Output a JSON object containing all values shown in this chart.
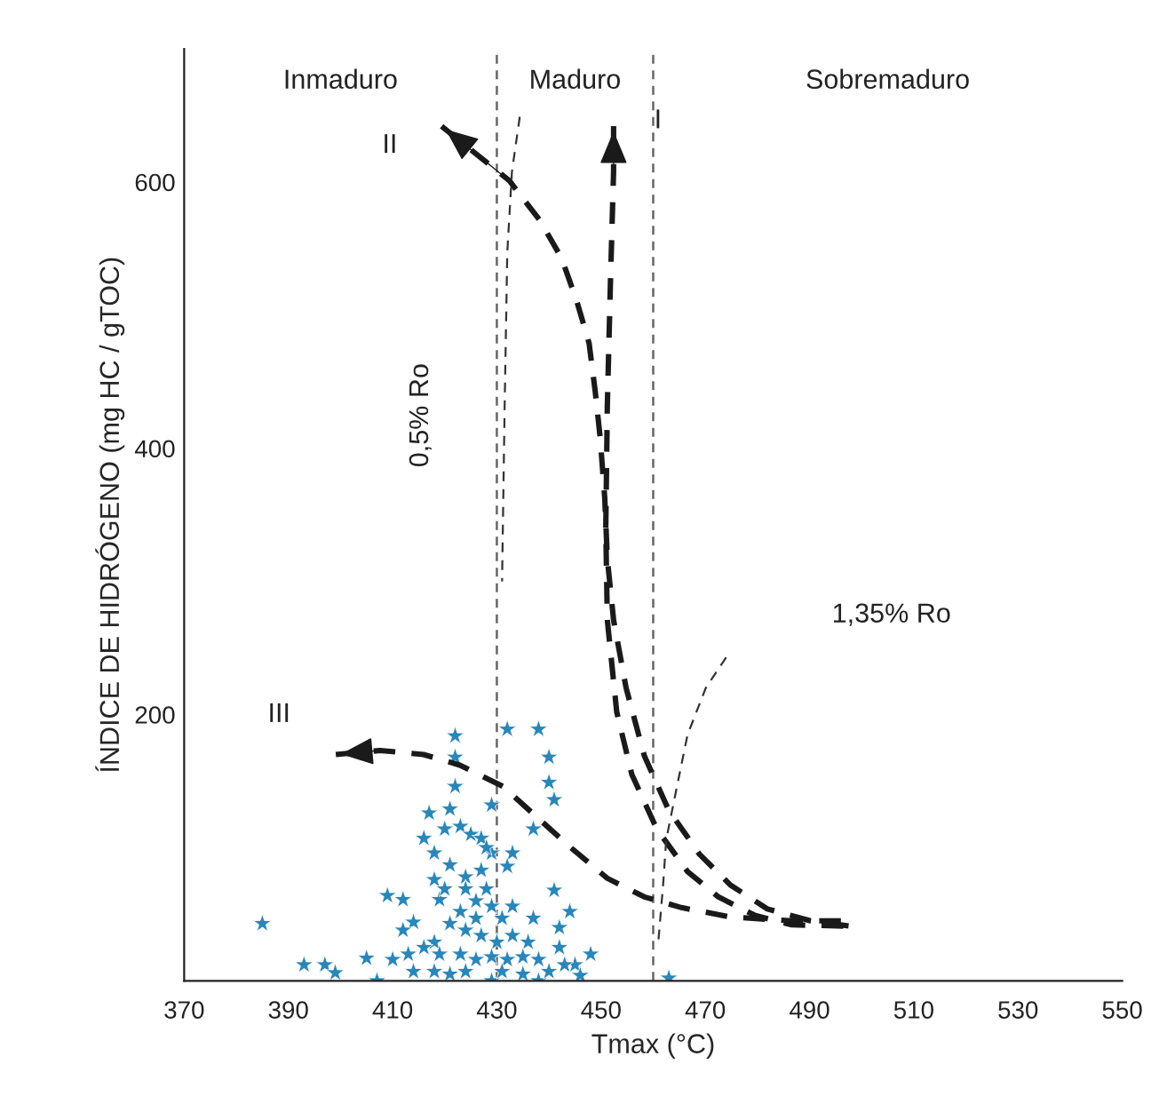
{
  "chart_data": {
    "type": "scatter",
    "xlabel": "Tmax (°C)",
    "ylabel": "ÍNDICE DE HIDRÓGENO (mg HC / gTOC)",
    "xlim": [
      370,
      550
    ],
    "ylim": [
      0,
      700
    ],
    "xticks": [
      370,
      390,
      410,
      430,
      450,
      470,
      490,
      510,
      530,
      550
    ],
    "yticks": [
      200,
      400,
      600
    ],
    "grid": false,
    "legend": false,
    "series": [
      {
        "marker": "star",
        "color": "#2a86b8",
        "x": [
          385,
          393,
          397,
          399,
          405,
          407,
          409,
          412,
          414,
          412,
          410,
          422,
          422,
          422,
          421,
          417,
          416,
          418,
          418,
          419,
          420,
          423,
          425,
          427,
          429,
          429,
          432,
          438,
          440,
          440,
          441,
          437,
          433,
          432,
          441,
          444,
          442,
          437,
          448,
          445,
          446,
          442,
          463,
          421,
          424,
          427,
          428,
          426,
          423,
          429,
          431,
          433,
          421,
          424,
          427,
          430,
          433,
          436,
          418,
          416,
          419,
          423,
          426,
          429,
          432,
          435,
          438,
          413,
          414,
          418,
          421,
          424,
          429,
          431,
          435,
          438,
          440,
          443,
          426,
          428,
          424,
          420
        ],
        "values": [
          43,
          12,
          12,
          6,
          17,
          0,
          64,
          61,
          44,
          38,
          16,
          184,
          168,
          146,
          129,
          126,
          107,
          96,
          76,
          61,
          114,
          116,
          110,
          107,
          96,
          132,
          189,
          189,
          168,
          149,
          136,
          114,
          96,
          86,
          68,
          52,
          40,
          47,
          20,
          12,
          4,
          25,
          2,
          87,
          78,
          83,
          69,
          60,
          52,
          56,
          47,
          56,
          43,
          38,
          34,
          29,
          34,
          29,
          29,
          25,
          20,
          20,
          16,
          18,
          16,
          18,
          16,
          20,
          7,
          7,
          5,
          7,
          0,
          7,
          5,
          0,
          7,
          12,
          47,
          100,
          69,
          69
        ]
      },
      {
        "type": "line",
        "marker": "none",
        "color": "#1a1a1a",
        "line_style": "dashed",
        "x": [
          419.4,
          432.4,
          438.3,
          442.4,
          445.3,
          447.7,
          448.9,
          449.8,
          450.7,
          451.2,
          452.4,
          454.8,
          458.3,
          463.0,
          468.9,
          474.8,
          481.9,
          490.2,
          497.9
        ],
        "values": [
          642,
          601,
          571,
          543,
          511,
          479,
          442,
          409,
          363,
          317,
          271,
          220,
          169,
          128,
          95,
          72,
          54,
          45,
          41
        ]
      },
      {
        "type": "line",
        "marker": "none",
        "color": "#1a1a1a",
        "line_style": "dashed",
        "x": [
          452.4,
          452.4,
          451.8,
          451.2,
          450.9,
          451.2,
          453.0,
          455.9,
          460.7,
          466.6,
          472.5,
          479.6,
          486.6,
          497.9
        ],
        "values": [
          642,
          608,
          525,
          432,
          340,
          271,
          202,
          155,
          114,
          82,
          63,
          49,
          42,
          41
        ]
      },
      {
        "type": "line",
        "marker": "none",
        "color": "#1a1a1a",
        "line_style": "dashed",
        "x": [
          399.1,
          407.6,
          415.9,
          422.9,
          431.2,
          437.1,
          444.2,
          451.2,
          458.3,
          465.4,
          474.8,
          486.6,
          497.9
        ],
        "values": [
          170,
          173,
          170,
          162,
          146,
          125,
          100,
          77,
          63,
          55,
          48,
          45,
          45
        ]
      },
      {
        "type": "line",
        "marker": "none",
        "color": "#333333",
        "line_style": "dotted",
        "x": [
          434.4,
          432.9,
          432.0,
          431.5,
          431.0
        ],
        "values": [
          649,
          608,
          547,
          432,
          300
        ]
      },
      {
        "type": "line",
        "marker": "none",
        "color": "#333333",
        "line_style": "dotted",
        "x": [
          474.0,
          470.1,
          466.6,
          464.2,
          462.5,
          461.9,
          461.0
        ],
        "values": [
          243,
          220,
          185,
          139,
          106,
          72,
          30
        ]
      }
    ],
    "ref_lines": [
      {
        "axis": "x",
        "value": 430,
        "color": "#666666",
        "line_style": "dashed"
      },
      {
        "axis": "x",
        "value": 460,
        "color": "#666666",
        "line_style": "dashed"
      }
    ],
    "annotations": [
      "Inmaduro",
      "Maduro",
      "Sobremaduro",
      "II",
      "I",
      "III",
      "0,5% Ro",
      "1,35% Ro"
    ]
  }
}
